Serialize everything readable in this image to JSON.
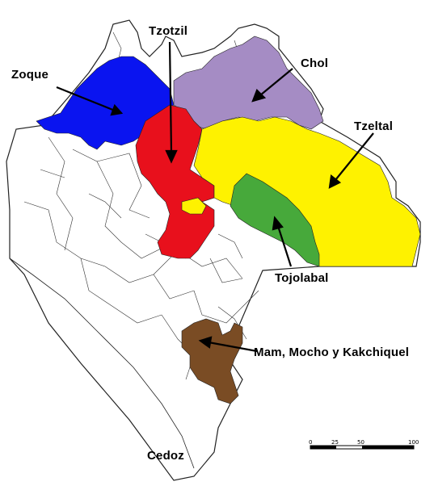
{
  "map": {
    "regions": [
      {
        "name": "Zoque",
        "color": "#0a14f0"
      },
      {
        "name": "Tzotzil",
        "color": "#e8101c"
      },
      {
        "name": "Chol",
        "color": "#a58cc4"
      },
      {
        "name": "Tzeltal",
        "color": "#fef200"
      },
      {
        "name": "Tojolabal",
        "color": "#47a93b"
      },
      {
        "name": "Mam, Mocho y Kakchiquel",
        "color": "#7a4c24"
      }
    ],
    "labels": {
      "zoque": "Zoque",
      "tzotzil": "Tzotzil",
      "chol": "Chol",
      "tzeltal": "Tzeltal",
      "tojolabal": "Tojolabal",
      "mam": "Mam, Mocho y Kakchiquel"
    },
    "credit": "Cedoz",
    "scale": {
      "ticks": [
        "0",
        "25",
        "50",
        "100"
      ]
    }
  }
}
